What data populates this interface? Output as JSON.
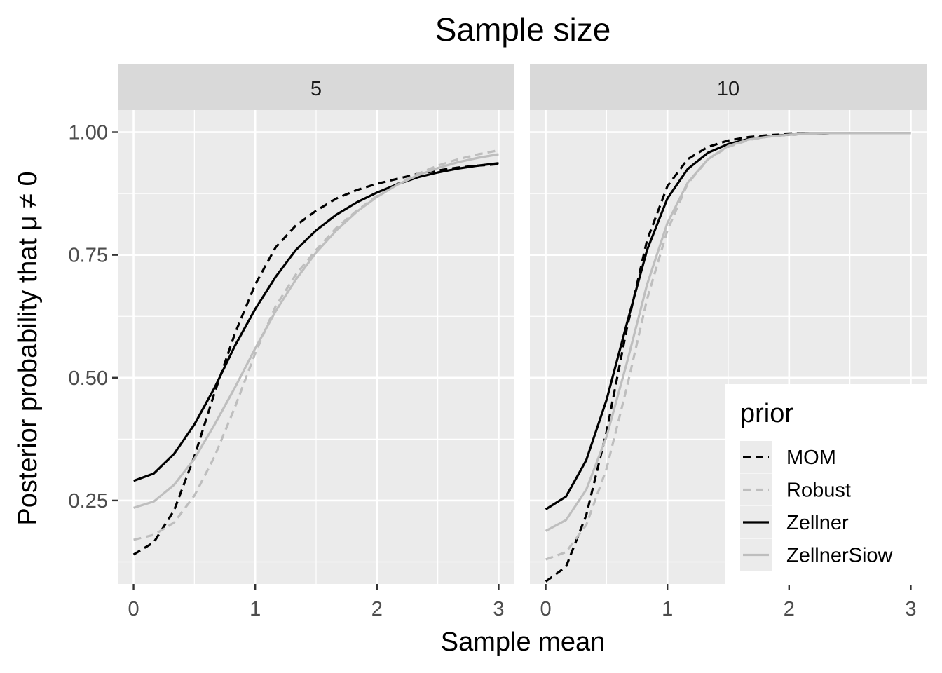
{
  "chart_data": {
    "type": "line",
    "title": "Sample size",
    "xlabel": "Sample mean",
    "ylabel": "Posterior probability that μ ≠ 0",
    "xlim": [
      -0.13,
      3.13
    ],
    "ylim": [
      0.08,
      1.045
    ],
    "x_ticks": [
      "0",
      "1",
      "2",
      "3"
    ],
    "y_ticks": [
      "0.25",
      "0.50",
      "0.75",
      "1.00"
    ],
    "grid": true,
    "legend": {
      "title": "prior",
      "placement": "bottom-right",
      "entries": [
        {
          "name": "MOM",
          "color": "#000000",
          "dashed": true
        },
        {
          "name": "Robust",
          "color": "#bebebe",
          "dashed": true
        },
        {
          "name": "Zellner",
          "color": "#000000",
          "dashed": false
        },
        {
          "name": "ZellnerSiow",
          "color": "#bebebe",
          "dashed": false
        }
      ]
    },
    "x": [
      0,
      0.1667,
      0.3333,
      0.5,
      0.6667,
      0.8333,
      1.0,
      1.1667,
      1.3333,
      1.5,
      1.6667,
      1.8333,
      2.0,
      2.1667,
      2.3333,
      2.5,
      2.6667,
      2.8333,
      3.0
    ],
    "panels": [
      {
        "label": "5",
        "series": [
          {
            "name": "MOM",
            "values": [
              0.14,
              0.165,
              0.23,
              0.34,
              0.47,
              0.59,
              0.69,
              0.765,
              0.81,
              0.84,
              0.865,
              0.882,
              0.895,
              0.905,
              0.915,
              0.922,
              0.928,
              0.932,
              0.935
            ]
          },
          {
            "name": "Robust",
            "values": [
              0.17,
              0.18,
              0.205,
              0.26,
              0.34,
              0.44,
              0.55,
              0.645,
              0.71,
              0.76,
              0.805,
              0.84,
              0.87,
              0.895,
              0.915,
              0.932,
              0.945,
              0.955,
              0.963
            ]
          },
          {
            "name": "Zellner",
            "values": [
              0.29,
              0.305,
              0.345,
              0.405,
              0.48,
              0.565,
              0.64,
              0.705,
              0.76,
              0.8,
              0.832,
              0.857,
              0.877,
              0.894,
              0.908,
              0.918,
              0.926,
              0.932,
              0.937
            ]
          },
          {
            "name": "ZellnerSiow",
            "values": [
              0.235,
              0.248,
              0.282,
              0.335,
              0.405,
              0.48,
              0.56,
              0.635,
              0.7,
              0.755,
              0.8,
              0.838,
              0.868,
              0.893,
              0.912,
              0.927,
              0.939,
              0.948,
              0.955
            ]
          }
        ]
      },
      {
        "label": "10",
        "series": [
          {
            "name": "MOM",
            "values": [
              0.085,
              0.115,
              0.22,
              0.39,
              0.6,
              0.78,
              0.89,
              0.945,
              0.97,
              0.983,
              0.99,
              0.994,
              0.996,
              0.997,
              0.998,
              0.998,
              0.998,
              0.998,
              0.998
            ]
          },
          {
            "name": "Robust",
            "values": [
              0.13,
              0.145,
              0.2,
              0.315,
              0.48,
              0.66,
              0.8,
              0.895,
              0.945,
              0.97,
              0.984,
              0.991,
              0.995,
              0.997,
              0.998,
              0.998,
              0.998,
              0.998,
              0.998
            ]
          },
          {
            "name": "Zellner",
            "values": [
              0.232,
              0.258,
              0.332,
              0.455,
              0.61,
              0.76,
              0.865,
              0.925,
              0.958,
              0.976,
              0.986,
              0.992,
              0.995,
              0.997,
              0.998,
              0.998,
              0.998,
              0.998,
              0.998
            ]
          },
          {
            "name": "ZellnerSiow",
            "values": [
              0.188,
              0.21,
              0.272,
              0.38,
              0.53,
              0.69,
              0.815,
              0.897,
              0.945,
              0.972,
              0.985,
              0.991,
              0.995,
              0.997,
              0.998,
              0.998,
              0.998,
              0.998,
              0.998
            ]
          }
        ]
      }
    ]
  }
}
